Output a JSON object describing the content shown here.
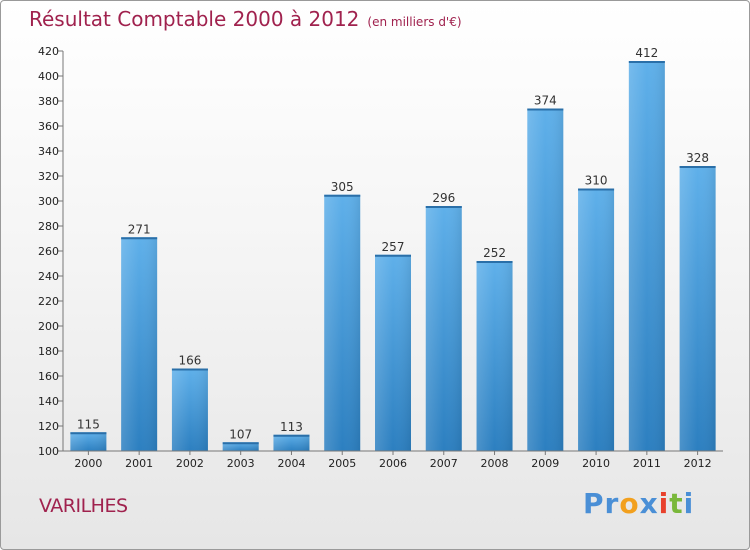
{
  "title": "Résultat Comptable 2000 à 2012",
  "subtitle": "(en milliers d'€)",
  "location": "VARILHES",
  "logo": {
    "text": "Proxiti",
    "letters": [
      "P",
      "r",
      "o",
      "x",
      "i",
      "t",
      "i"
    ],
    "colors": [
      "#4a8fd6",
      "#4a8fd6",
      "#f2a01e",
      "#4a8fd6",
      "#e8412c",
      "#7ab83b",
      "#4a8fd6"
    ]
  },
  "colors": {
    "bar_light": "#5fb0ea",
    "bar_dark": "#2c7fc0",
    "title": "#a0224e"
  },
  "chart_data": {
    "type": "bar",
    "categories": [
      "2000",
      "2001",
      "2002",
      "2003",
      "2004",
      "2005",
      "2006",
      "2007",
      "2008",
      "2009",
      "2010",
      "2011",
      "2012"
    ],
    "values": [
      115,
      271,
      166,
      107,
      113,
      305,
      257,
      296,
      252,
      374,
      310,
      412,
      328
    ],
    "ylim": [
      100,
      420
    ],
    "yticks": [
      100,
      120,
      140,
      160,
      180,
      200,
      220,
      240,
      260,
      280,
      300,
      320,
      340,
      360,
      380,
      400,
      420
    ],
    "grid": false,
    "data_labels": true
  }
}
